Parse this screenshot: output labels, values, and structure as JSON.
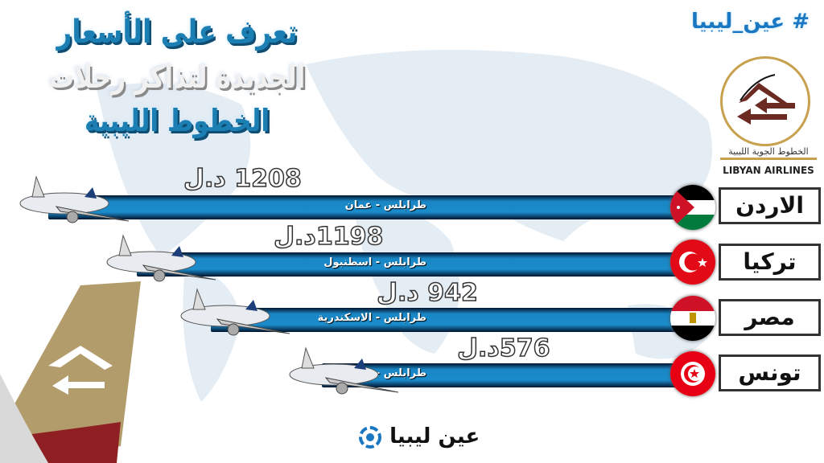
{
  "header": {
    "title_lines": [
      "تعرف على الأسعار",
      "الجديدة لتذاكر رحلات",
      "الخطوط الليبية"
    ],
    "hashtag": "# عين_ليبيا"
  },
  "airline_logo": {
    "arabic": "الخطوط الجوية الليبية",
    "english": "LIBYAN AIRLINES",
    "colors": {
      "brown": "#6b2a22",
      "gold": "#c8a14e"
    }
  },
  "routes": [
    {
      "country": "الاردن",
      "route": "طرابلس - عمان",
      "price": "1208 د.ل",
      "flag": "jordan"
    },
    {
      "country": "تركيا",
      "route": "طرابلس - اسطنبول",
      "price": "1198د.ل",
      "flag": "turkey"
    },
    {
      "country": "مصر",
      "route": "طرابلس - الاسكندرية",
      "price": "942 د.ل",
      "flag": "egypt"
    },
    {
      "country": "تونس",
      "route": "طرابلس - تونس",
      "price": "576د.ل",
      "flag": "tunisia"
    }
  ],
  "footer": {
    "brand": "عين ليبيا"
  }
}
